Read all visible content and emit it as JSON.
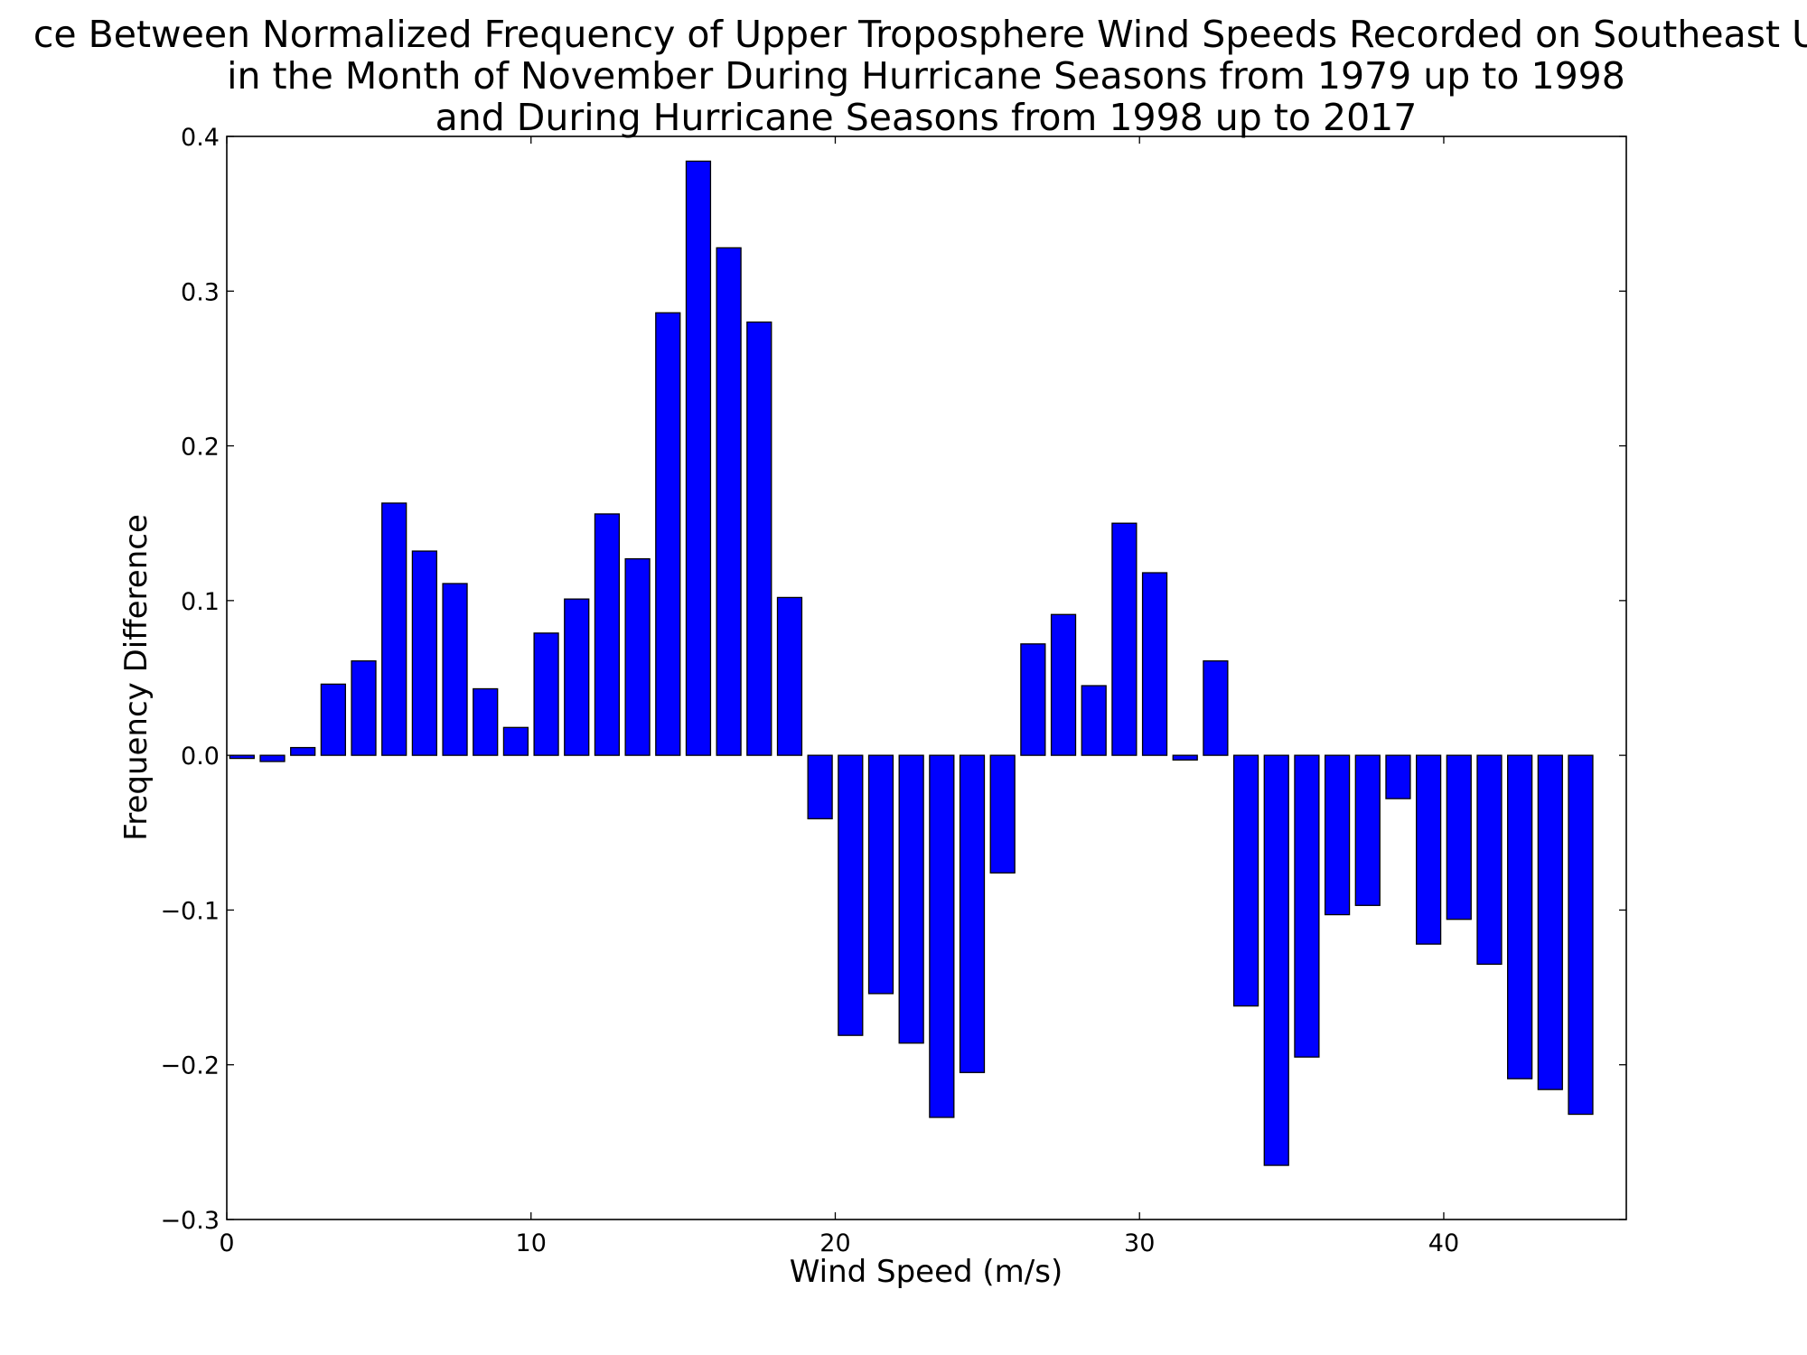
{
  "chart_data": {
    "type": "bar",
    "title_lines": [
      "ce Between Normalized Frequency of Upper Troposphere Wind Speeds Recorded on Southeast U",
      "in the Month of November During Hurricane Seasons from 1979 up to 1998",
      "and During Hurricane Seasons from 1998 up to 2017"
    ],
    "xlabel": "Wind Speed (m/s)",
    "ylabel": "Frequency Difference",
    "xlim": [
      0,
      46
    ],
    "ylim": [
      -0.3,
      0.4
    ],
    "xticks": [
      0,
      10,
      20,
      30,
      40
    ],
    "xtick_labels": [
      "0",
      "10",
      "20",
      "30",
      "40"
    ],
    "yticks": [
      -0.3,
      -0.2,
      -0.1,
      0.0,
      0.1,
      0.2,
      0.3,
      0.4
    ],
    "ytick_labels": [
      "−0.3",
      "−0.2",
      "−0.1",
      "0.0",
      "0.1",
      "0.2",
      "0.3",
      "0.4"
    ],
    "bar_width": 0.8,
    "x": [
      0,
      1,
      2,
      3,
      4,
      5,
      6,
      7,
      8,
      9,
      10,
      11,
      12,
      13,
      14,
      15,
      16,
      17,
      18,
      19,
      20,
      21,
      22,
      23,
      24,
      25,
      26,
      27,
      28,
      29,
      30,
      31,
      32,
      33,
      34,
      35,
      36,
      37,
      38,
      39,
      40,
      41,
      42,
      43,
      44
    ],
    "values": [
      -0.002,
      -0.004,
      0.005,
      0.046,
      0.061,
      0.163,
      0.132,
      0.111,
      0.043,
      0.018,
      0.079,
      0.101,
      0.156,
      0.127,
      0.286,
      0.384,
      0.328,
      0.28,
      0.102,
      -0.041,
      -0.181,
      -0.154,
      -0.186,
      -0.234,
      -0.205,
      -0.076,
      0.072,
      0.091,
      0.045,
      0.15,
      0.118,
      -0.003,
      0.061,
      -0.162,
      -0.265,
      -0.195,
      -0.103,
      -0.097,
      -0.028,
      -0.122,
      -0.106,
      -0.135,
      -0.209,
      -0.216,
      -0.232
    ],
    "bar_color": "#0000ff",
    "edge_color": "#000000",
    "grid": false,
    "legend": false
  }
}
